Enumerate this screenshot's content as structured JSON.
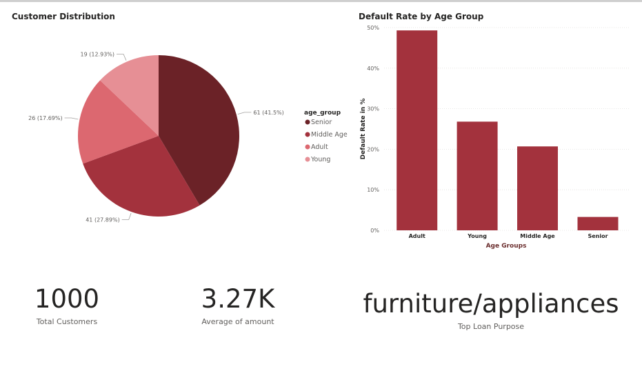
{
  "customer_distribution": {
    "title": "Customer Distribution",
    "legend_title": "age_group",
    "colors": {
      "Senior": "#6b2227",
      "Middle Age": "#a3323d",
      "Adult": "#dc6870",
      "Young": "#e68f95"
    },
    "chart_data": {
      "type": "pie",
      "title": "Customer Distribution",
      "categories": [
        "Senior",
        "Middle Age",
        "Adult",
        "Young"
      ],
      "values": [
        61,
        41,
        26,
        19
      ],
      "percent_labels": [
        "61 (41.5%)",
        "41 (27.89%)",
        "26 (17.69%)",
        "19 (12.93%)"
      ],
      "legend": [
        "Senior",
        "Middle Age",
        "Adult",
        "Young"
      ],
      "legend_position": "right"
    }
  },
  "default_rate": {
    "title": "Default Rate by Age Group",
    "bar_color": "#a3323d",
    "chart_data": {
      "type": "bar",
      "title": "Default Rate by Age Group",
      "categories": [
        "Adult",
        "Young",
        "Middle Age",
        "Senior"
      ],
      "values": [
        49.3,
        26.8,
        20.7,
        3.3
      ],
      "xlabel": "Age Groups",
      "ylabel": "Default Rate in %",
      "ylim": [
        0,
        50
      ],
      "yticks": [
        0,
        10,
        20,
        30,
        40,
        50
      ],
      "ytick_labels": [
        "0%",
        "10%",
        "20%",
        "30%",
        "40%",
        "50%"
      ],
      "grid": true
    }
  },
  "cards": {
    "total_customers": {
      "value": "1000",
      "label": "Total Customers"
    },
    "average_amount": {
      "value": "3.27K",
      "label": "Average of amount"
    },
    "top_purpose": {
      "value": "furniture/appliances",
      "label": "Top Loan Purpose"
    }
  }
}
